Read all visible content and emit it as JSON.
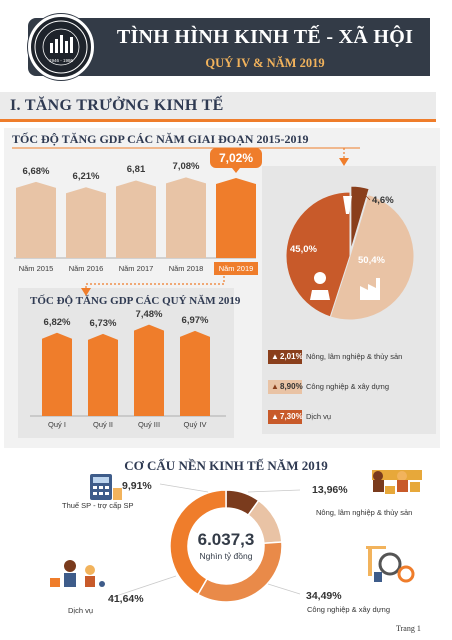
{
  "header": {
    "title": "TÌNH HÌNH KINH TẾ - XÃ HỘI",
    "subtitle": "QUÝ IV & NĂM 2019",
    "logo_years": "1946 - 1986"
  },
  "section": {
    "title": "I. TĂNG TRƯỞNG KINH TẾ"
  },
  "annual_growth": {
    "title": "TỐC ĐỘ TĂNG GDP CÁC NĂM GIAI ĐOẠN 2015-2019",
    "chart_data": {
      "type": "bar",
      "categories": [
        "Năm 2015",
        "Năm 2016",
        "Năm 2017",
        "Năm 2018",
        "Năm 2019"
      ],
      "values": [
        6.68,
        6.21,
        6.81,
        7.08,
        7.02
      ],
      "value_labels": [
        "6,68%",
        "6,21%",
        "6,81",
        "7,08%",
        "7,02%"
      ],
      "ylim": [
        0,
        7.2
      ],
      "highlight_index": 4,
      "colors": {
        "normal": "#e8c4a6",
        "highlight": "#ef7d2b"
      }
    }
  },
  "quarterly_growth": {
    "title": "TỐC ĐỘ TĂNG GDP CÁC QUÝ NĂM 2019",
    "chart_data": {
      "type": "bar",
      "categories": [
        "Quý I",
        "Quý II",
        "Quý III",
        "Quý IV"
      ],
      "values": [
        6.82,
        6.73,
        7.48,
        6.97
      ],
      "value_labels": [
        "6,82%",
        "6,73%",
        "7,48%",
        "6,97%"
      ],
      "ylim": [
        0,
        7.7
      ],
      "color": "#ef7d2b"
    }
  },
  "growth_contribution": {
    "chart_data": {
      "type": "pie",
      "labels": [
        "Nông, lâm nghiệp & thủy sản",
        "Công nghiệp & xây dựng",
        "Dịch vụ"
      ],
      "values": [
        4.6,
        50.4,
        45.0
      ],
      "value_labels": [
        "4,6%",
        "50,4%",
        "45,0%"
      ],
      "colors": [
        "#8a3f1c",
        "#e9c3a5",
        "#c85a2a"
      ]
    },
    "legend": [
      {
        "value": "2,01%",
        "label": "Nông, lâm nghiệp & thủy sản",
        "color": "#8a3f1c"
      },
      {
        "value": "8,90%",
        "label": "Công nghiệp & xây dựng",
        "color": "#e9c3a5"
      },
      {
        "value": "7,30%",
        "label": "Dịch vụ",
        "color": "#c85a2a"
      }
    ]
  },
  "structure": {
    "title": "CƠ CẤU NỀN KINH TẾ NĂM 2019",
    "center_value": "6.037,3",
    "center_label": "Nghìn tỷ đồng",
    "chart_data": {
      "type": "pie",
      "labels": [
        "Thuế SP - trợ cấp SP",
        "Nông, lâm nghiệp & thủy sản",
        "Công nghiệp & xây dựng",
        "Dịch vụ"
      ],
      "values": [
        9.91,
        13.96,
        34.49,
        41.64
      ],
      "value_labels": [
        "9,91%",
        "13,96%",
        "34,49%",
        "41,64%"
      ],
      "colors": [
        "#7a3b1d",
        "#e9c3a5",
        "#e98a49",
        "#ef7d2b"
      ]
    }
  },
  "footer": {
    "page": "Trang 1"
  }
}
